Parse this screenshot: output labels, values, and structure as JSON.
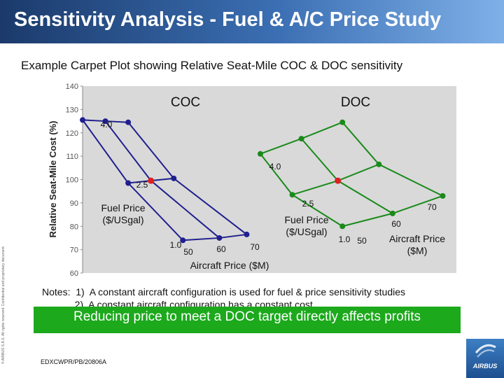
{
  "slide": {
    "title": "Sensitivity Analysis - Fuel & A/C Price Study",
    "subtitle": "Example Carpet Plot showing Relative Seat-Mile COC & DOC sensitivity",
    "copyright": "© AIRBUS S.A.S. All rights reserved. Confidential and proprietary document.",
    "notes": [
      "Notes:  1)  A constant aircraft configuration is used for fuel & price sensitivity studies",
      "            2)  A constant aircraft configuration has a constant cost."
    ],
    "banner": "Reducing price to meet a DOC target directly affects profits",
    "doc_code": "EDXCWPR/PB/20806A",
    "logo_text": "AIRBUS",
    "title_bar_color": "#1b3a6b",
    "banner_color": "#1ca91c"
  },
  "chart_data": {
    "type": "carpet",
    "ylabel": "Relative Seat-Mile Cost (%)",
    "ylim": [
      60,
      140
    ],
    "yticks": [
      "140",
      "130",
      "120",
      "110",
      "100",
      "90",
      "80",
      "70",
      "60"
    ],
    "grid": false,
    "plot_background": "#d9d9d9",
    "carpets": [
      {
        "name": "COC",
        "color": "#1f1f8f",
        "fuel_price_label": "Fuel Price\n($/USgal)",
        "aircraft_price_label": "Aircraft Price ($M)",
        "fuel_prices": [
          "4.0",
          "2.5",
          "1.0"
        ],
        "aircraft_prices": [
          "50",
          "60",
          "70"
        ],
        "points": [
          {
            "fuel": "4.0",
            "price": "50",
            "x": 0.0,
            "y": 125.5
          },
          {
            "fuel": "4.0",
            "price": "60",
            "x": 0.5,
            "y": 125.0
          },
          {
            "fuel": "4.0",
            "price": "70",
            "x": 1.0,
            "y": 124.5
          },
          {
            "fuel": "2.5",
            "price": "50",
            "x": 1.0,
            "y": 98.5
          },
          {
            "fuel": "2.5",
            "price": "60",
            "x": 1.5,
            "y": 99.5
          },
          {
            "fuel": "2.5",
            "price": "70",
            "x": 2.0,
            "y": 100.5
          },
          {
            "fuel": "1.0",
            "price": "50",
            "x": 2.2,
            "y": 74.0
          },
          {
            "fuel": "1.0",
            "price": "60",
            "x": 3.0,
            "y": 75.0
          },
          {
            "fuel": "1.0",
            "price": "70",
            "x": 3.6,
            "y": 76.5
          }
        ],
        "highlight": {
          "fuel": "2.5",
          "price": "60",
          "color": "#e02020"
        }
      },
      {
        "name": "DOC",
        "color": "#1a8a1a",
        "fuel_price_label": "Fuel Price\n($/USgal)",
        "aircraft_price_label": "Aircraft Price\n($M)",
        "fuel_prices": [
          "4.0",
          "2.5",
          "1.0"
        ],
        "aircraft_prices": [
          "50",
          "60",
          "70"
        ],
        "points": [
          {
            "fuel": "4.0",
            "price": "50",
            "x": 3.9,
            "y": 111.0
          },
          {
            "fuel": "4.0",
            "price": "60",
            "x": 4.8,
            "y": 117.5
          },
          {
            "fuel": "4.0",
            "price": "70",
            "x": 5.7,
            "y": 124.5
          },
          {
            "fuel": "2.5",
            "price": "50",
            "x": 4.6,
            "y": 93.5
          },
          {
            "fuel": "2.5",
            "price": "60",
            "x": 5.6,
            "y": 99.5
          },
          {
            "fuel": "2.5",
            "price": "70",
            "x": 6.5,
            "y": 106.5
          },
          {
            "fuel": "1.0",
            "price": "50",
            "x": 5.7,
            "y": 80.0
          },
          {
            "fuel": "1.0",
            "price": "60",
            "x": 6.8,
            "y": 85.5
          },
          {
            "fuel": "1.0",
            "price": "70",
            "x": 7.9,
            "y": 93.0
          }
        ],
        "highlight": {
          "fuel": "2.5",
          "price": "60",
          "color": "#e02020"
        }
      }
    ]
  }
}
